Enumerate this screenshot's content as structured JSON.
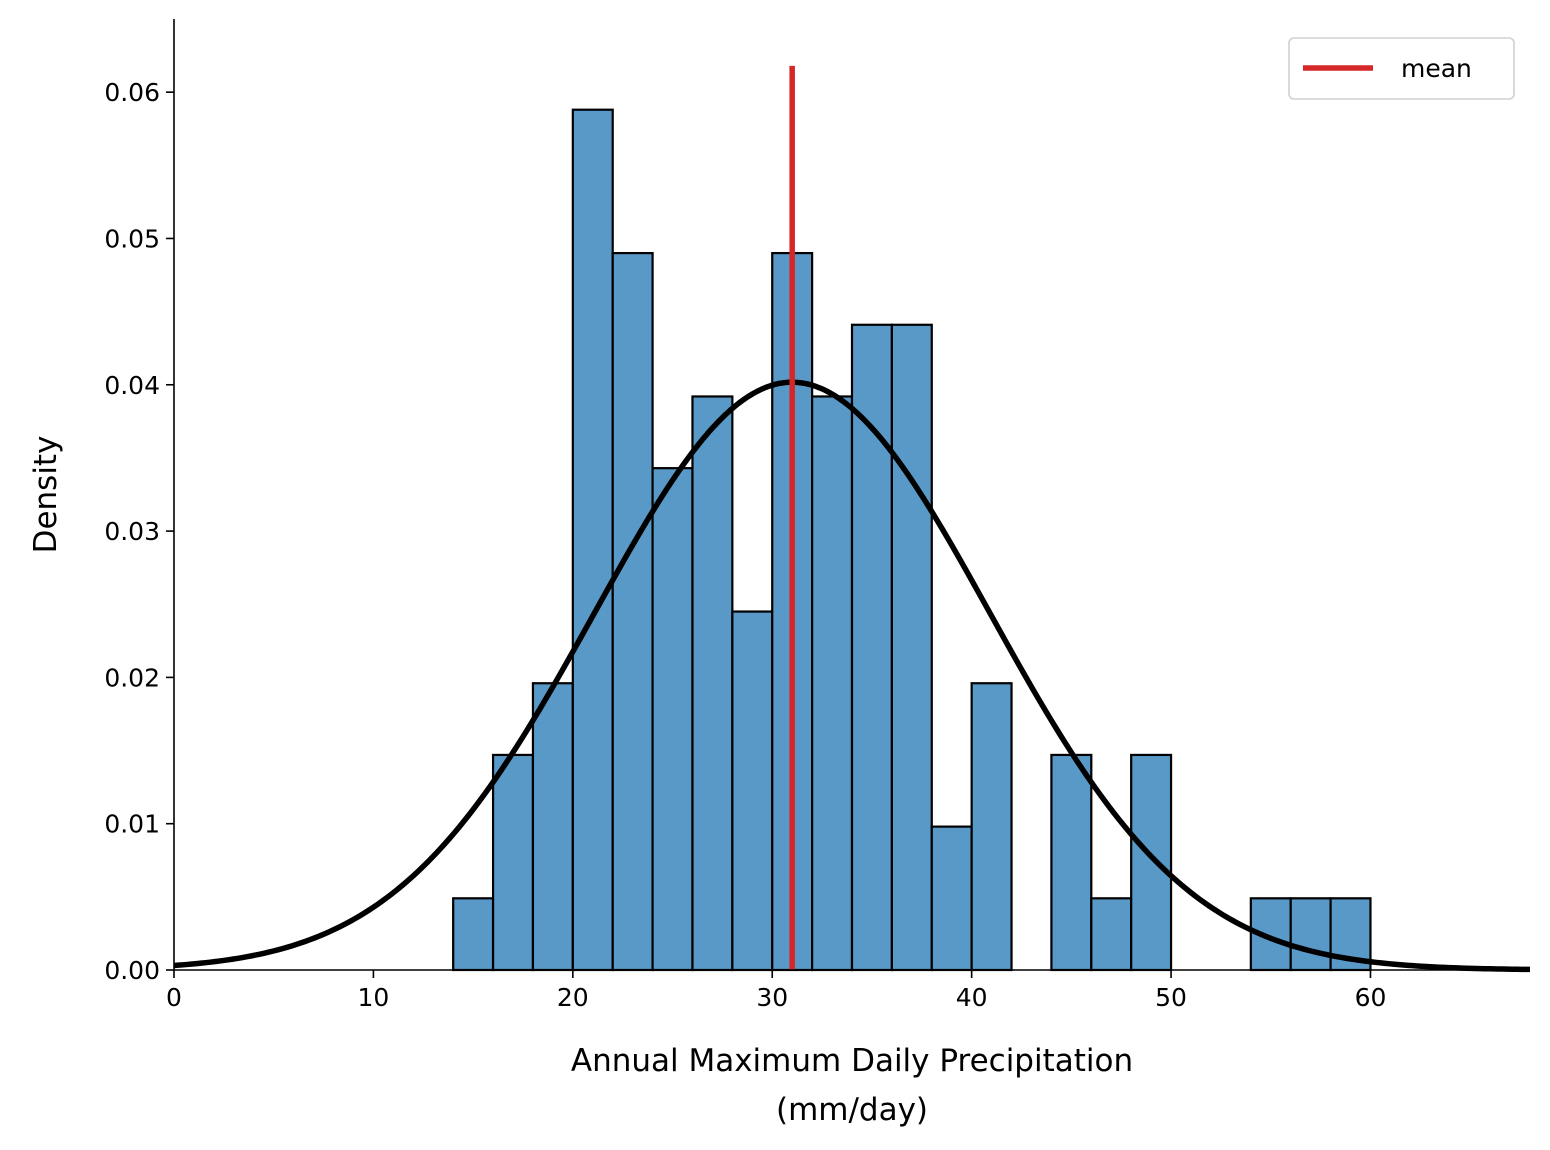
{
  "chart_data": {
    "type": "bar",
    "title": "",
    "xlabel_line1": "Annual Maximum Daily Precipitation",
    "xlabel_line2": "(mm/day)",
    "ylabel": "Density",
    "xlim": [
      0,
      68
    ],
    "ylim": [
      0,
      0.065
    ],
    "xticks": [
      0,
      10,
      20,
      30,
      40,
      50,
      60
    ],
    "yticks": [
      0.0,
      0.01,
      0.02,
      0.03,
      0.04,
      0.05,
      0.06
    ],
    "ytick_labels": [
      "0.00",
      "0.01",
      "0.02",
      "0.03",
      "0.04",
      "0.05",
      "0.06"
    ],
    "grid": false,
    "legend_position": "top-right",
    "bin_width": 2,
    "bins": [
      {
        "x0": 14,
        "x1": 16,
        "density": 0.0049
      },
      {
        "x0": 16,
        "x1": 18,
        "density": 0.0147
      },
      {
        "x0": 18,
        "x1": 20,
        "density": 0.0196
      },
      {
        "x0": 20,
        "x1": 22,
        "density": 0.0588
      },
      {
        "x0": 22,
        "x1": 24,
        "density": 0.049
      },
      {
        "x0": 24,
        "x1": 26,
        "density": 0.0343
      },
      {
        "x0": 26,
        "x1": 28,
        "density": 0.0392
      },
      {
        "x0": 28,
        "x1": 30,
        "density": 0.0245
      },
      {
        "x0": 30,
        "x1": 32,
        "density": 0.049
      },
      {
        "x0": 32,
        "x1": 34,
        "density": 0.0392
      },
      {
        "x0": 34,
        "x1": 36,
        "density": 0.0441
      },
      {
        "x0": 36,
        "x1": 38,
        "density": 0.0441
      },
      {
        "x0": 38,
        "x1": 40,
        "density": 0.0098
      },
      {
        "x0": 40,
        "x1": 42,
        "density": 0.0196
      },
      {
        "x0": 42,
        "x1": 44,
        "density": 0.0
      },
      {
        "x0": 44,
        "x1": 46,
        "density": 0.0147
      },
      {
        "x0": 46,
        "x1": 48,
        "density": 0.0049
      },
      {
        "x0": 48,
        "x1": 50,
        "density": 0.0147
      },
      {
        "x0": 50,
        "x1": 52,
        "density": 0.0
      },
      {
        "x0": 52,
        "x1": 54,
        "density": 0.0
      },
      {
        "x0": 54,
        "x1": 56,
        "density": 0.0049
      },
      {
        "x0": 56,
        "x1": 58,
        "density": 0.0049
      },
      {
        "x0": 58,
        "x1": 60,
        "density": 0.0049
      }
    ],
    "normal_fit": {
      "mean": 31.0,
      "std": 9.93
    },
    "mean_line": {
      "x": 31.0,
      "ymax": 0.0618
    },
    "series": [
      {
        "name": "mean",
        "kind": "vline",
        "color": "#d62728"
      }
    ],
    "colors": {
      "bar_fill": "#5899c7",
      "bar_edge": "#000000",
      "curve": "#000000",
      "mean": "#d62728"
    }
  }
}
